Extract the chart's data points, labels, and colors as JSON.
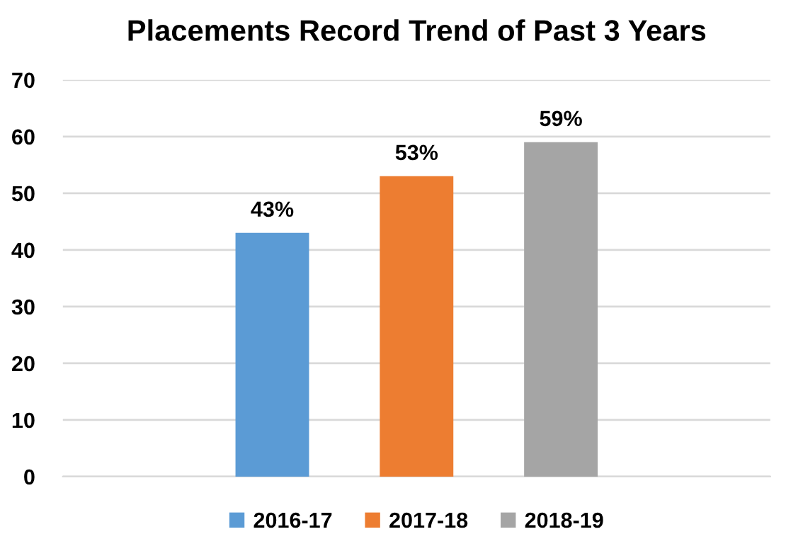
{
  "chart_data": {
    "type": "bar",
    "title": "Placements Record Trend of Past 3 Years",
    "categories": [
      null
    ],
    "series": [
      {
        "name": "2016-17",
        "color": "#5b9bd5",
        "values": [
          43
        ],
        "value_labels": [
          "43%"
        ]
      },
      {
        "name": "2017-18",
        "color": "#ed7d31",
        "values": [
          53
        ],
        "value_labels": [
          "53%"
        ]
      },
      {
        "name": "2018-19",
        "color": "#a5a5a5",
        "values": [
          59
        ],
        "value_labels": [
          "59%"
        ]
      }
    ],
    "ylim": [
      0,
      70
    ],
    "yticks": [
      0,
      10,
      20,
      30,
      40,
      50,
      60,
      70
    ],
    "grid": "y",
    "legend": "bottom"
  }
}
